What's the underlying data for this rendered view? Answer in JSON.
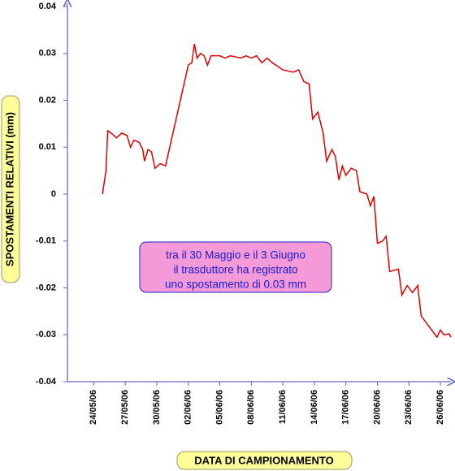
{
  "chart_data": {
    "type": "line",
    "y_label": "SPOSTAMENTI RELATIVI (mm)",
    "x_label": "DATA DI CAMPIONAMENTO",
    "annotation": [
      "tra il 30 Maggio e il 3 Giugno",
      "il trasduttore ha registrato",
      "uno spostamento di 0.03 mm"
    ],
    "ylim": [
      -0.04,
      0.04
    ],
    "yticks": [
      0.04,
      0.03,
      0.02,
      0.01,
      0,
      -0.01,
      -0.02,
      -0.03,
      -0.04
    ],
    "xlim": [
      "2006-05-21T12:00",
      "2006-06-27T00:00"
    ],
    "xticks": [
      {
        "value": "2006-05-24T00:00",
        "label": "24/05/06"
      },
      {
        "value": "2006-05-27T00:00",
        "label": "27/05/06"
      },
      {
        "value": "2006-05-30T00:00",
        "label": "30/05/06"
      },
      {
        "value": "2006-06-02T00:00",
        "label": "02/06/06"
      },
      {
        "value": "2006-06-05T00:00",
        "label": "05/06/06"
      },
      {
        "value": "2006-06-08T00:00",
        "label": "08/06/06"
      },
      {
        "value": "2006-06-11T00:00",
        "label": "11/06/06"
      },
      {
        "value": "2006-06-14T00:00",
        "label": "14/06/06"
      },
      {
        "value": "2006-06-17T00:00",
        "label": "17/06/06"
      },
      {
        "value": "2006-06-20T00:00",
        "label": "20/06/06"
      },
      {
        "value": "2006-06-23T00:00",
        "label": "23/06/06"
      },
      {
        "value": "2006-06-26T00:00",
        "label": "26/06/06"
      }
    ],
    "grid": false,
    "axis_color": "#6666cc",
    "series": [
      {
        "color": "#e00000",
        "x": [
          "2006-05-24T20:00",
          "2006-05-25T04:00",
          "2006-05-25T08:00",
          "2006-05-25T16:00",
          "2006-05-26T04:00",
          "2006-05-26T16:00",
          "2006-05-27T04:00",
          "2006-05-27T12:00",
          "2006-05-27T20:00",
          "2006-05-28T08:00",
          "2006-05-28T16:00",
          "2006-05-28T20:00",
          "2006-05-29T04:00",
          "2006-05-29T12:00",
          "2006-05-29T20:00",
          "2006-05-30T08:00",
          "2006-05-30T20:00",
          "2006-06-02T00:00",
          "2006-06-02T08:00",
          "2006-06-02T14:00",
          "2006-06-02T20:00",
          "2006-06-03T04:00",
          "2006-06-03T12:00",
          "2006-06-03T20:00",
          "2006-06-04T04:00",
          "2006-06-05T00:00",
          "2006-06-05T12:00",
          "2006-06-06T00:00",
          "2006-06-07T00:00",
          "2006-06-07T12:00",
          "2006-06-08T00:00",
          "2006-06-08T12:00",
          "2006-06-09T00:00",
          "2006-06-09T12:00",
          "2006-06-10T00:00",
          "2006-06-11T00:00",
          "2006-06-12T00:00",
          "2006-06-12T12:00",
          "2006-06-13T00:00",
          "2006-06-13T12:00",
          "2006-06-13T20:00",
          "2006-06-14T08:00",
          "2006-06-14T20:00",
          "2006-06-15T04:00",
          "2006-06-15T16:00",
          "2006-06-16T00:00",
          "2006-06-16T08:00",
          "2006-06-16T16:00",
          "2006-06-17T00:00",
          "2006-06-17T12:00",
          "2006-06-18T00:00",
          "2006-06-18T08:00",
          "2006-06-19T00:00",
          "2006-06-19T08:00",
          "2006-06-19T16:00",
          "2006-06-20T00:00",
          "2006-06-20T12:00",
          "2006-06-20T20:00",
          "2006-06-21T04:00",
          "2006-06-22T00:00",
          "2006-06-22T08:00",
          "2006-06-22T20:00",
          "2006-06-23T08:00",
          "2006-06-23T20:00",
          "2006-06-24T04:00",
          "2006-06-25T00:00",
          "2006-06-25T16:00",
          "2006-06-26T00:00",
          "2006-06-26T08:00",
          "2006-06-26T20:00",
          "2006-06-27T00:00"
        ],
        "values": [
          0,
          0.005,
          0.0135,
          0.013,
          0.012,
          0.013,
          0.0125,
          0.01,
          0.0115,
          0.011,
          0.0095,
          0.007,
          0.0095,
          0.009,
          0.0055,
          0.0065,
          0.006,
          0.0275,
          0.028,
          0.032,
          0.029,
          0.03,
          0.0295,
          0.0275,
          0.0295,
          0.0295,
          0.029,
          0.0295,
          0.029,
          0.0295,
          0.029,
          0.0295,
          0.028,
          0.029,
          0.028,
          0.0265,
          0.026,
          0.0265,
          0.024,
          0.0235,
          0.016,
          0.0175,
          0.013,
          0.007,
          0.0095,
          0.008,
          0.003,
          0.006,
          0.004,
          0.0055,
          0.005,
          0.0005,
          0,
          -0.0025,
          -0.0005,
          -0.0105,
          -0.01,
          -0.009,
          -0.0165,
          -0.016,
          -0.0215,
          -0.0195,
          -0.021,
          -0.0195,
          -0.026,
          -0.0285,
          -0.0305,
          -0.029,
          -0.03,
          -0.0298,
          -0.0305
        ]
      }
    ]
  }
}
